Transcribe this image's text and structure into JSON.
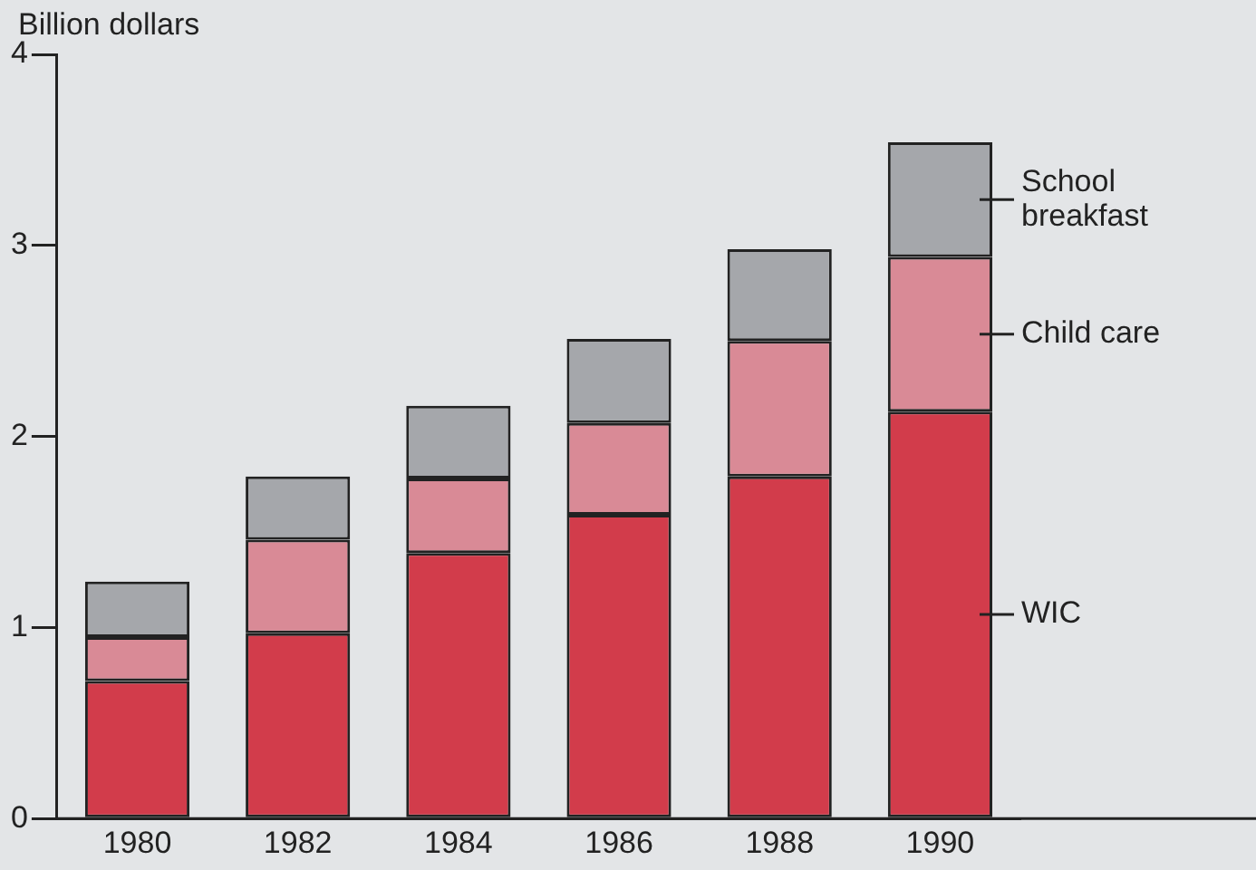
{
  "chart_data": {
    "type": "bar",
    "stacked": true,
    "ylabel": "Billion dollars",
    "categories": [
      "1980",
      "1982",
      "1984",
      "1986",
      "1988",
      "1990"
    ],
    "series": [
      {
        "name": "WIC",
        "color": "#d23c4b",
        "values": [
          0.72,
          0.97,
          1.39,
          1.59,
          1.79,
          2.13
        ]
      },
      {
        "name": "Child care",
        "color": "#d98a96",
        "values": [
          0.23,
          0.49,
          0.39,
          0.48,
          0.71,
          0.81
        ]
      },
      {
        "name": "School breakfast",
        "color": "#a5a7ab",
        "values": [
          0.29,
          0.33,
          0.38,
          0.44,
          0.48,
          0.6
        ]
      }
    ],
    "ylim": [
      0,
      4
    ],
    "yticks": [
      0,
      1,
      2,
      3,
      4
    ],
    "grid": false,
    "legend": false
  }
}
